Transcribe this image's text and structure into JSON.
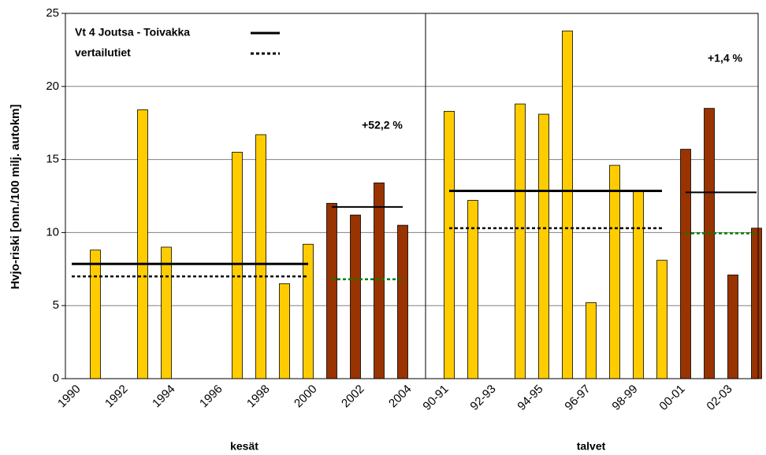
{
  "chart_data": [
    {
      "type": "bar",
      "ylabel": "Hvjo-riski [onn./100 milj. autokm]",
      "xlabel": "kesät",
      "categories": [
        "1990",
        null,
        "1992",
        null,
        "1994",
        null,
        "1996",
        null,
        "1998",
        null,
        "2000",
        null,
        "2002",
        null,
        "2004"
      ],
      "series": [
        {
          "color": "#ffcc00",
          "values": [
            null,
            8.8,
            null,
            18.4,
            9.0,
            null,
            null,
            15.5,
            16.7,
            6.5,
            9.2,
            null,
            null,
            null,
            null
          ]
        },
        {
          "color": "#993300",
          "values": [
            null,
            null,
            null,
            null,
            null,
            null,
            null,
            null,
            null,
            null,
            null,
            12.0,
            11.2,
            13.4,
            10.5
          ]
        }
      ],
      "lines": [
        {
          "color": "#000000",
          "dash": "solid",
          "width": 3,
          "values": [
            7.85,
            7.85,
            7.85,
            7.85,
            7.85,
            7.85,
            7.85,
            7.85,
            7.85,
            7.85,
            7.85,
            null,
            null,
            null,
            null
          ]
        },
        {
          "color": "#000000",
          "dash": "dotted",
          "width": 2.5,
          "values": [
            7.0,
            7.0,
            7.0,
            7.0,
            7.0,
            7.0,
            7.0,
            7.0,
            7.0,
            7.0,
            7.0,
            null,
            null,
            null,
            null
          ]
        },
        {
          "color": "#000000",
          "dash": "solid",
          "width": 2,
          "values": [
            null,
            null,
            null,
            null,
            null,
            null,
            null,
            null,
            null,
            null,
            null,
            11.75,
            11.75,
            11.75,
            11.75
          ]
        },
        {
          "color": "#008000",
          "dash": "dotted",
          "width": 2.5,
          "values": [
            null,
            null,
            null,
            null,
            null,
            null,
            null,
            null,
            null,
            null,
            null,
            6.8,
            6.8,
            6.8,
            6.8
          ]
        }
      ],
      "annotation": "+52,2 %",
      "legend": [
        {
          "label": "Vt 4 Joutsa - Toivakka",
          "dash": "solid",
          "color": "#000000"
        },
        {
          "label": "vertailutiet",
          "dash": "dotted",
          "color": "#000000"
        }
      ],
      "ylim": [
        0,
        25
      ],
      "yticks": [
        0,
        5,
        10,
        15,
        20,
        25
      ],
      "grid": true
    },
    {
      "type": "bar",
      "xlabel": "talvet",
      "categories": [
        "90-91",
        null,
        "92-93",
        null,
        "94-95",
        null,
        "96-97",
        null,
        "98-99",
        null,
        "00-01",
        null,
        "02-03",
        null
      ],
      "series": [
        {
          "color": "#ffcc00",
          "values": [
            18.3,
            12.2,
            null,
            18.8,
            18.1,
            23.8,
            5.2,
            14.6,
            12.8,
            8.1,
            null,
            null,
            null,
            null
          ]
        },
        {
          "color": "#993300",
          "values": [
            null,
            null,
            null,
            null,
            null,
            null,
            null,
            null,
            null,
            null,
            15.7,
            18.5,
            7.1,
            10.3
          ]
        }
      ],
      "lines": [
        {
          "color": "#000000",
          "dash": "solid",
          "width": 3,
          "values": [
            12.85,
            12.85,
            12.85,
            12.85,
            12.85,
            12.85,
            12.85,
            12.85,
            12.85,
            12.85,
            null,
            null,
            null,
            null
          ]
        },
        {
          "color": "#000000",
          "dash": "dotted",
          "width": 2.5,
          "values": [
            10.3,
            10.3,
            10.3,
            10.3,
            10.3,
            10.3,
            10.3,
            10.3,
            10.3,
            10.3,
            null,
            null,
            null,
            null
          ]
        },
        {
          "color": "#000000",
          "dash": "solid",
          "width": 2,
          "values": [
            null,
            null,
            null,
            null,
            null,
            null,
            null,
            null,
            null,
            null,
            12.75,
            12.75,
            12.75,
            12.75
          ]
        },
        {
          "color": "#008000",
          "dash": "dotted",
          "width": 2.5,
          "values": [
            null,
            null,
            null,
            null,
            null,
            null,
            null,
            null,
            null,
            null,
            9.95,
            9.95,
            9.95,
            9.95
          ]
        }
      ],
      "annotation": "+1,4 %"
    }
  ]
}
